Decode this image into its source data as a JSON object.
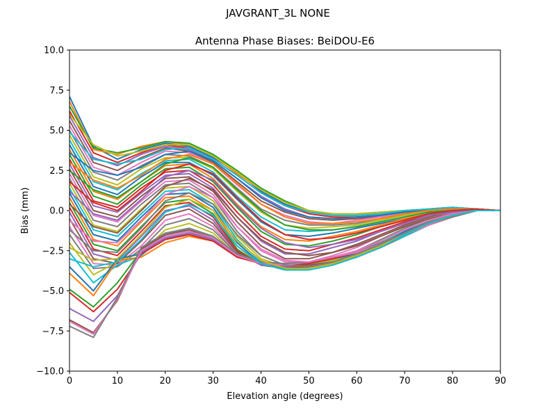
{
  "figure": {
    "suptitle": "JAVGRANT_3L     NONE"
  },
  "chart_data": {
    "type": "line",
    "title": "Antenna Phase Biases: BeiDOU-E6",
    "xlabel": "Elevation angle (degrees)",
    "ylabel": "Bias (mm)",
    "xlim": [
      0,
      90
    ],
    "ylim": [
      -10,
      10
    ],
    "x_ticks": [
      "0",
      "10",
      "20",
      "30",
      "40",
      "50",
      "60",
      "70",
      "80",
      "90"
    ],
    "y_ticks": [
      "−10.0",
      "−7.5",
      "−5.0",
      "−2.5",
      "0.0",
      "2.5",
      "5.0",
      "7.5",
      "10.0"
    ],
    "x_tick_values": [
      0,
      10,
      20,
      30,
      40,
      50,
      60,
      70,
      80,
      90
    ],
    "y_tick_values": [
      -10,
      -7.5,
      -5,
      -2.5,
      0,
      2.5,
      5,
      7.5,
      10
    ],
    "grid": false,
    "legend": "none",
    "x": [
      0,
      5,
      10,
      15,
      20,
      25,
      30,
      35,
      40,
      45,
      50,
      55,
      60,
      65,
      70,
      75,
      80,
      85,
      90
    ],
    "colors": [
      "#1f77b4",
      "#ff7f0e",
      "#2ca02c",
      "#d62728",
      "#9467bd",
      "#8c564b",
      "#e377c2",
      "#7f7f7f",
      "#bcbd22",
      "#17becf"
    ],
    "series": [
      {
        "values": [
          7.1,
          4.0,
          3.2,
          3.8,
          4.2,
          4.0,
          3.3,
          2.4,
          1.2,
          0.4,
          -0.1,
          -0.3,
          -0.3,
          -0.2,
          -0.1,
          0.1,
          0.2,
          0.1,
          0
        ]
      },
      {
        "values": [
          6.8,
          3.8,
          3.5,
          4.0,
          4.3,
          4.1,
          3.4,
          2.3,
          1.3,
          0.5,
          0.0,
          -0.3,
          -0.3,
          -0.2,
          0.0,
          0.1,
          0.2,
          0.1,
          0
        ]
      },
      {
        "values": [
          6.5,
          3.9,
          3.6,
          3.9,
          4.3,
          4.2,
          3.5,
          2.5,
          1.4,
          0.6,
          0.0,
          -0.2,
          -0.2,
          -0.1,
          0.0,
          0.1,
          0.2,
          0.1,
          0
        ]
      },
      {
        "values": [
          6.2,
          3.6,
          3.0,
          3.6,
          4.1,
          3.9,
          3.2,
          2.2,
          1.1,
          0.3,
          -0.2,
          -0.4,
          -0.4,
          -0.3,
          -0.1,
          0.1,
          0.2,
          0.1,
          0
        ]
      },
      {
        "values": [
          5.9,
          3.3,
          2.8,
          3.5,
          4.0,
          3.8,
          3.1,
          2.0,
          0.9,
          0.1,
          -0.4,
          -0.5,
          -0.5,
          -0.3,
          -0.1,
          0.0,
          0.1,
          0.1,
          0
        ]
      },
      {
        "values": [
          5.6,
          3.0,
          2.5,
          3.3,
          3.9,
          3.7,
          3.0,
          1.8,
          0.6,
          -0.1,
          -0.5,
          -0.6,
          -0.5,
          -0.4,
          -0.2,
          0.0,
          0.1,
          0.1,
          0
        ]
      },
      {
        "values": [
          5.3,
          2.7,
          2.2,
          3.0,
          3.7,
          3.6,
          2.9,
          1.6,
          0.4,
          -0.3,
          -0.7,
          -0.8,
          -0.6,
          -0.4,
          -0.2,
          0.0,
          0.1,
          0.1,
          0
        ]
      },
      {
        "values": [
          5.0,
          2.4,
          1.9,
          2.8,
          3.5,
          3.4,
          2.7,
          1.4,
          0.1,
          -0.6,
          -0.9,
          -0.9,
          -0.8,
          -0.5,
          -0.3,
          -0.1,
          0.1,
          0.1,
          0
        ]
      },
      {
        "values": [
          4.7,
          2.1,
          1.6,
          2.6,
          3.3,
          3.3,
          2.6,
          1.2,
          -0.1,
          -0.9,
          -1.1,
          -1.0,
          -0.9,
          -0.6,
          -0.3,
          -0.1,
          0.0,
          0.1,
          0
        ]
      },
      {
        "values": [
          4.4,
          1.8,
          1.3,
          2.3,
          3.1,
          3.2,
          2.4,
          0.9,
          -0.4,
          -1.2,
          -1.3,
          -1.2,
          -1.0,
          -0.7,
          -0.4,
          -0.1,
          0.0,
          0.1,
          0
        ]
      },
      {
        "values": [
          4.1,
          1.5,
          1.0,
          2.1,
          3.0,
          3.0,
          2.2,
          0.7,
          -0.7,
          -1.5,
          -1.6,
          -1.4,
          -1.1,
          -0.8,
          -0.5,
          -0.2,
          0.0,
          0.1,
          0
        ]
      },
      {
        "values": [
          3.8,
          1.2,
          0.7,
          1.8,
          2.8,
          2.9,
          2.0,
          0.4,
          -1.0,
          -1.8,
          -1.9,
          -1.6,
          -1.3,
          -0.9,
          -0.5,
          -0.2,
          0.0,
          0.1,
          0
        ]
      },
      {
        "values": [
          3.5,
          0.9,
          0.4,
          1.6,
          2.6,
          2.7,
          1.8,
          0.2,
          -1.3,
          -2.1,
          -2.2,
          -1.9,
          -1.5,
          -1.0,
          -0.6,
          -0.2,
          -0.1,
          0.1,
          0
        ]
      },
      {
        "values": [
          3.2,
          0.6,
          0.2,
          1.4,
          2.4,
          2.5,
          1.6,
          -0.1,
          -1.6,
          -2.4,
          -2.5,
          -2.1,
          -1.7,
          -1.2,
          -0.7,
          -0.3,
          -0.1,
          0.0,
          0
        ]
      },
      {
        "values": [
          2.9,
          0.3,
          -0.1,
          1.1,
          2.2,
          2.3,
          1.4,
          -0.4,
          -1.9,
          -2.7,
          -2.7,
          -2.3,
          -1.9,
          -1.3,
          -0.8,
          -0.3,
          -0.1,
          0.0,
          0
        ]
      },
      {
        "values": [
          2.6,
          0.0,
          -0.4,
          0.9,
          2.0,
          2.1,
          1.2,
          -0.7,
          -2.2,
          -3.0,
          -3.0,
          -2.6,
          -2.1,
          -1.5,
          -0.9,
          -0.4,
          -0.1,
          0.0,
          0
        ]
      },
      {
        "values": [
          2.3,
          -0.3,
          -0.7,
          0.6,
          1.8,
          1.9,
          1.0,
          -1.0,
          -2.5,
          -3.2,
          -3.2,
          -2.8,
          -2.3,
          -1.6,
          -1.0,
          -0.5,
          -0.2,
          0.0,
          0
        ]
      },
      {
        "values": [
          2.0,
          -0.6,
          -1.0,
          0.4,
          1.6,
          1.7,
          0.8,
          -1.3,
          -2.8,
          -3.4,
          -3.4,
          -3.0,
          -2.5,
          -1.8,
          -1.1,
          -0.5,
          -0.2,
          0.0,
          0
        ]
      },
      {
        "values": [
          1.7,
          -0.9,
          -1.3,
          0.1,
          1.4,
          1.5,
          0.6,
          -1.6,
          -3.0,
          -3.5,
          -3.5,
          -3.1,
          -2.6,
          -1.9,
          -1.2,
          -0.6,
          -0.2,
          0.0,
          0
        ]
      },
      {
        "values": [
          1.4,
          -1.2,
          -1.6,
          -0.2,
          1.2,
          1.3,
          0.4,
          -1.8,
          -3.2,
          -3.6,
          -3.6,
          -3.2,
          -2.7,
          -2.0,
          -1.3,
          -0.6,
          -0.2,
          0.0,
          0
        ]
      },
      {
        "values": [
          1.1,
          -1.5,
          -1.9,
          -0.4,
          1.0,
          1.1,
          0.2,
          -2.0,
          -3.3,
          -3.6,
          -3.6,
          -3.3,
          -2.8,
          -2.1,
          -1.3,
          -0.7,
          -0.3,
          0.0,
          0
        ]
      },
      {
        "values": [
          0.8,
          -1.8,
          -2.2,
          -0.7,
          0.8,
          0.9,
          0.0,
          -2.2,
          -3.4,
          -3.6,
          -3.6,
          -3.3,
          -2.9,
          -2.2,
          -1.4,
          -0.7,
          -0.3,
          0.0,
          0
        ]
      },
      {
        "values": [
          0.5,
          -2.1,
          -2.5,
          -1.0,
          0.5,
          0.7,
          -0.2,
          -2.4,
          -3.4,
          -3.6,
          -3.5,
          -3.3,
          -2.9,
          -2.2,
          -1.5,
          -0.8,
          -0.3,
          0.0,
          0
        ]
      },
      {
        "values": [
          0.2,
          -2.4,
          -2.8,
          -1.3,
          0.3,
          0.5,
          -0.4,
          -2.5,
          -3.4,
          -3.5,
          -3.5,
          -3.3,
          -2.9,
          -2.3,
          -1.5,
          -0.8,
          -0.3,
          0.0,
          0
        ]
      },
      {
        "values": [
          -0.1,
          -2.7,
          -3.1,
          -1.6,
          0.0,
          0.3,
          -0.6,
          -2.6,
          -3.4,
          -3.5,
          -3.4,
          -3.2,
          -2.9,
          -2.3,
          -1.6,
          -0.8,
          -0.3,
          0.0,
          0
        ]
      },
      {
        "values": [
          -0.5,
          -3.0,
          -3.3,
          -1.9,
          -0.3,
          0.1,
          -0.8,
          -2.6,
          -3.3,
          -3.4,
          -3.4,
          -3.2,
          -2.9,
          -2.3,
          -1.6,
          -0.9,
          -0.4,
          0.0,
          0
        ]
      },
      {
        "values": [
          -1.0,
          -3.3,
          -3.4,
          -2.2,
          -0.6,
          -0.2,
          -1.0,
          -2.7,
          -3.3,
          -3.4,
          -3.3,
          -3.1,
          -2.8,
          -2.3,
          -1.6,
          -0.9,
          -0.4,
          0.0,
          0
        ]
      },
      {
        "values": [
          -1.5,
          -3.6,
          -3.5,
          -2.4,
          -0.9,
          -0.5,
          -1.2,
          -2.7,
          -3.3,
          -3.4,
          -3.3,
          -3.1,
          -2.8,
          -2.3,
          -1.6,
          -0.9,
          -0.4,
          0.0,
          0
        ]
      },
      {
        "values": [
          -2.0,
          -4.0,
          -3.2,
          -2.6,
          -1.2,
          -0.8,
          -1.4,
          -2.8,
          -3.3,
          -3.4,
          -3.3,
          -3.1,
          -2.8,
          -2.2,
          -1.6,
          -0.9,
          -0.4,
          0.0,
          0
        ]
      },
      {
        "values": [
          -2.6,
          -4.5,
          -3.4,
          -2.8,
          -1.5,
          -1.1,
          -1.6,
          -2.8,
          -3.3,
          -3.4,
          -3.3,
          -3.0,
          -2.7,
          -2.2,
          -1.6,
          -0.9,
          -0.4,
          0.0,
          0
        ]
      },
      {
        "values": [
          -3.5,
          -5.0,
          -3.0,
          -2.7,
          -1.8,
          -1.4,
          -1.8,
          -2.9,
          -3.3,
          -3.4,
          -3.3,
          -3.0,
          -2.7,
          -2.2,
          -1.5,
          -0.9,
          -0.4,
          0.0,
          0
        ]
      },
      {
        "values": [
          -3.9,
          -5.3,
          -3.1,
          -2.9,
          -2.0,
          -1.6,
          -1.9,
          -2.9,
          -3.3,
          -3.4,
          -3.2,
          -3.0,
          -2.6,
          -2.1,
          -1.5,
          -0.9,
          -0.4,
          0.0,
          0
        ]
      },
      {
        "values": [
          -4.9,
          -6.0,
          -4.5,
          -2.5,
          -1.6,
          -1.3,
          -1.8,
          -2.8,
          -3.3,
          -3.4,
          -3.3,
          -3.0,
          -2.6,
          -2.1,
          -1.5,
          -0.9,
          -0.4,
          0.0,
          0
        ]
      },
      {
        "values": [
          -5.1,
          -6.3,
          -4.9,
          -2.7,
          -1.8,
          -1.5,
          -1.9,
          -2.9,
          -3.3,
          -3.4,
          -3.3,
          -3.0,
          -2.6,
          -2.1,
          -1.5,
          -0.9,
          -0.4,
          0.0,
          0
        ]
      },
      {
        "values": [
          -6.1,
          -6.9,
          -5.3,
          -2.6,
          -1.7,
          -1.4,
          -1.8,
          -2.8,
          -3.3,
          -3.4,
          -3.2,
          -2.9,
          -2.6,
          -2.1,
          -1.5,
          -0.9,
          -0.4,
          0.0,
          0
        ]
      },
      {
        "values": [
          -6.8,
          -7.6,
          -5.6,
          -2.4,
          -1.5,
          -1.2,
          -1.7,
          -2.7,
          -3.2,
          -3.3,
          -3.2,
          -2.9,
          -2.6,
          -2.1,
          -1.5,
          -0.9,
          -0.4,
          0.0,
          0
        ]
      },
      {
        "values": [
          -6.9,
          -7.7,
          -5.5,
          -2.5,
          -1.6,
          -1.3,
          -1.7,
          -2.8,
          -3.3,
          -3.4,
          -3.2,
          -2.9,
          -2.6,
          -2.1,
          -1.5,
          -0.9,
          -0.4,
          0.0,
          0
        ]
      },
      {
        "values": [
          -7.2,
          -7.9,
          -5.4,
          -2.3,
          -1.4,
          -1.1,
          -1.6,
          -2.7,
          -3.2,
          -3.3,
          -3.2,
          -2.9,
          -2.5,
          -2.0,
          -1.4,
          -0.8,
          -0.4,
          0.0,
          0
        ]
      },
      {
        "values": [
          6.0,
          4.1,
          3.4,
          3.7,
          4.1,
          4.1,
          3.4,
          2.4,
          1.3,
          0.5,
          0.0,
          -0.2,
          -0.2,
          -0.1,
          0.0,
          0.1,
          0.2,
          0.1,
          0
        ]
      },
      {
        "values": [
          4.9,
          3.2,
          2.9,
          3.2,
          3.8,
          3.9,
          3.2,
          2.2,
          1.1,
          0.3,
          -0.1,
          -0.3,
          -0.3,
          -0.2,
          0.0,
          0.1,
          0.2,
          0.1,
          0
        ]
      },
      {
        "values": [
          3.6,
          2.5,
          2.2,
          2.7,
          3.5,
          3.7,
          3.1,
          2.0,
          0.8,
          0.0,
          -0.4,
          -0.5,
          -0.4,
          -0.3,
          -0.1,
          0.0,
          0.1,
          0.1,
          0
        ]
      },
      {
        "values": [
          3.0,
          1.9,
          1.4,
          2.2,
          3.2,
          3.5,
          2.9,
          1.7,
          0.4,
          -0.4,
          -0.8,
          -0.8,
          -0.7,
          -0.5,
          -0.2,
          0.0,
          0.1,
          0.1,
          0
        ]
      },
      {
        "values": [
          2.5,
          1.3,
          0.8,
          1.8,
          2.9,
          3.3,
          2.7,
          1.3,
          0.0,
          -0.9,
          -1.2,
          -1.2,
          -1.0,
          -0.7,
          -0.4,
          -0.1,
          0.0,
          0.1,
          0
        ]
      },
      {
        "values": [
          1.8,
          0.5,
          0.0,
          1.2,
          2.5,
          2.9,
          2.3,
          0.8,
          -0.6,
          -1.5,
          -1.8,
          -1.7,
          -1.4,
          -1.0,
          -0.6,
          -0.2,
          0.0,
          0.1,
          0
        ]
      },
      {
        "values": [
          1.2,
          -0.2,
          -0.6,
          0.7,
          2.1,
          2.5,
          1.9,
          0.3,
          -1.1,
          -2.0,
          -2.3,
          -2.1,
          -1.8,
          -1.3,
          -0.8,
          -0.3,
          -0.1,
          0.0,
          0
        ]
      },
      {
        "values": [
          0.4,
          -1.0,
          -1.4,
          0.0,
          1.5,
          2.0,
          1.3,
          -0.4,
          -1.8,
          -2.6,
          -2.8,
          -2.6,
          -2.2,
          -1.6,
          -1.0,
          -0.5,
          -0.2,
          0.0,
          0
        ]
      },
      {
        "values": [
          -0.6,
          -1.9,
          -2.0,
          -0.6,
          1.0,
          1.5,
          0.8,
          -1.0,
          -2.4,
          -3.1,
          -3.2,
          -2.9,
          -2.5,
          -1.9,
          -1.2,
          -0.6,
          -0.2,
          0.0,
          0
        ]
      },
      {
        "values": [
          -1.2,
          -2.5,
          -2.6,
          -1.1,
          0.6,
          1.1,
          0.4,
          -1.5,
          -2.8,
          -3.4,
          -3.5,
          -3.2,
          -2.7,
          -2.1,
          -1.4,
          -0.7,
          -0.3,
          0.0,
          0
        ]
      },
      {
        "values": [
          -2.3,
          -3.1,
          -3.0,
          -1.5,
          0.2,
          0.7,
          0.0,
          -1.9,
          -3.1,
          -3.6,
          -3.6,
          -3.3,
          -2.8,
          -2.2,
          -1.5,
          -0.8,
          -0.3,
          0.0,
          0
        ]
      },
      {
        "values": [
          -3.0,
          -3.5,
          -3.2,
          -1.8,
          -0.1,
          0.4,
          -0.3,
          -2.2,
          -3.3,
          -3.7,
          -3.7,
          -3.4,
          -2.9,
          -2.3,
          -1.5,
          -0.8,
          -0.3,
          0.0,
          0
        ]
      }
    ]
  }
}
